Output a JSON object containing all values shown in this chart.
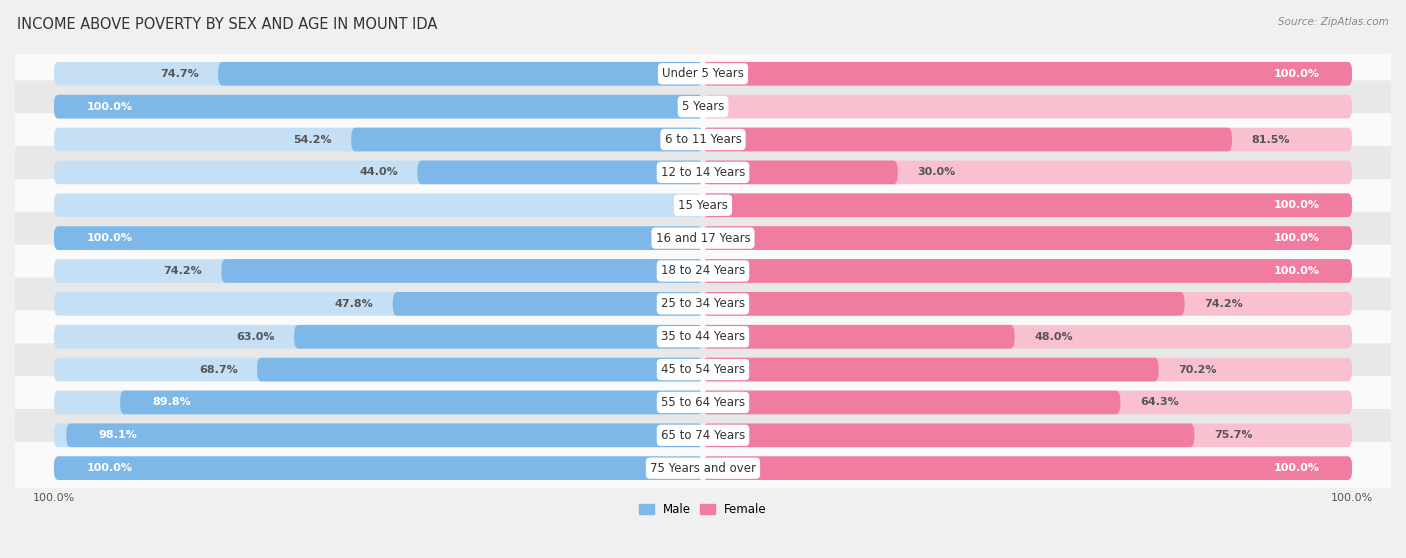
{
  "title": "INCOME ABOVE POVERTY BY SEX AND AGE IN MOUNT IDA",
  "source": "Source: ZipAtlas.com",
  "categories": [
    "Under 5 Years",
    "5 Years",
    "6 to 11 Years",
    "12 to 14 Years",
    "15 Years",
    "16 and 17 Years",
    "18 to 24 Years",
    "25 to 34 Years",
    "35 to 44 Years",
    "45 to 54 Years",
    "55 to 64 Years",
    "65 to 74 Years",
    "75 Years and over"
  ],
  "male": [
    74.7,
    100.0,
    54.2,
    44.0,
    0.0,
    100.0,
    74.2,
    47.8,
    63.0,
    68.7,
    89.8,
    98.1,
    100.0
  ],
  "female": [
    100.0,
    0.0,
    81.5,
    30.0,
    100.0,
    100.0,
    100.0,
    74.2,
    48.0,
    70.2,
    64.3,
    75.7,
    100.0
  ],
  "male_color": "#7db8e8",
  "female_color": "#f07ca0",
  "male_color_light": "#c5dff5",
  "female_color_light": "#f9c0d0",
  "bg_color": "#f0f0f0",
  "row_odd_color": "#fafafa",
  "row_even_color": "#e8e8e8",
  "title_fontsize": 10.5,
  "label_fontsize": 8.5,
  "value_fontsize": 8.0,
  "source_fontsize": 7.5
}
